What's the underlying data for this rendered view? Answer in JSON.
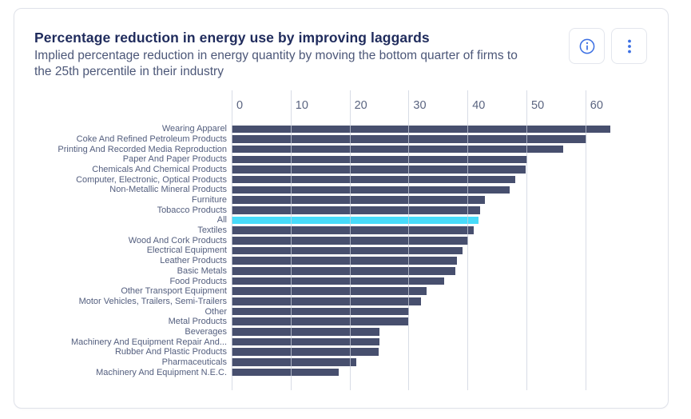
{
  "page": {
    "background": "#FFFFFF"
  },
  "card": {
    "title": "Percentage reduction in energy use by improving laggards",
    "subtitle": "Implied percentage reduction in energy quantity by moving the bottom quarter of firms to the 25th percentile in their industry",
    "actions": [
      {
        "label": "info",
        "icon": "info-circle-icon"
      },
      {
        "label": "more options",
        "icon": "kebab-vertical-icon"
      }
    ]
  },
  "colors": {
    "title": "#1F2B5C",
    "subtitle": "#4C5778",
    "axis_label": "#5A6480",
    "category_label": "#535E7E",
    "bar": "#474F6E",
    "highlight_bar": "#47DBFA",
    "gridline": "#CBD0DE",
    "card_border": "#DFE2E9",
    "icon_blue": "#3B6FE3"
  },
  "chart_data": {
    "type": "bar",
    "orientation": "horizontal",
    "title": "Percentage reduction in energy use by improving laggards",
    "xlabel": "",
    "ylabel": "",
    "xlim": [
      0,
      74
    ],
    "xticks": [
      0,
      10,
      20,
      30,
      40,
      50,
      60
    ],
    "grid": true,
    "legend": false,
    "highlight_category": "All",
    "categories": [
      "Wearing Apparel",
      "Coke And Refined Petroleum Products",
      "Printing And Recorded Media Reproduction",
      "Paper And Paper Products",
      "Chemicals And Chemical Products",
      "Computer, Electronic, Optical Products",
      "Non-Metallic Mineral Products",
      "Furniture",
      "Tobacco Products",
      "All",
      "Textiles",
      "Wood And Cork Products",
      "Electrical Equipment",
      "Leather Products",
      "Basic Metals",
      "Food Products",
      "Other Transport Equipment",
      "Motor Vehicles, Trailers, Semi-Trailers",
      "Other",
      "Metal Products",
      "Beverages",
      "Machinery And Equipment Repair And...",
      "Rubber And Plastic Products",
      "Pharmaceuticals",
      "Machinery And Equipment N.E.C."
    ],
    "values": [
      64.2,
      60.1,
      56.2,
      50.1,
      49.9,
      48.1,
      47.2,
      43.0,
      42.2,
      41.9,
      41.0,
      40.1,
      39.1,
      38.2,
      38.0,
      36.1,
      33.0,
      32.1,
      30.1,
      30.0,
      25.1,
      25.0,
      24.9,
      21.1,
      18.1
    ]
  }
}
